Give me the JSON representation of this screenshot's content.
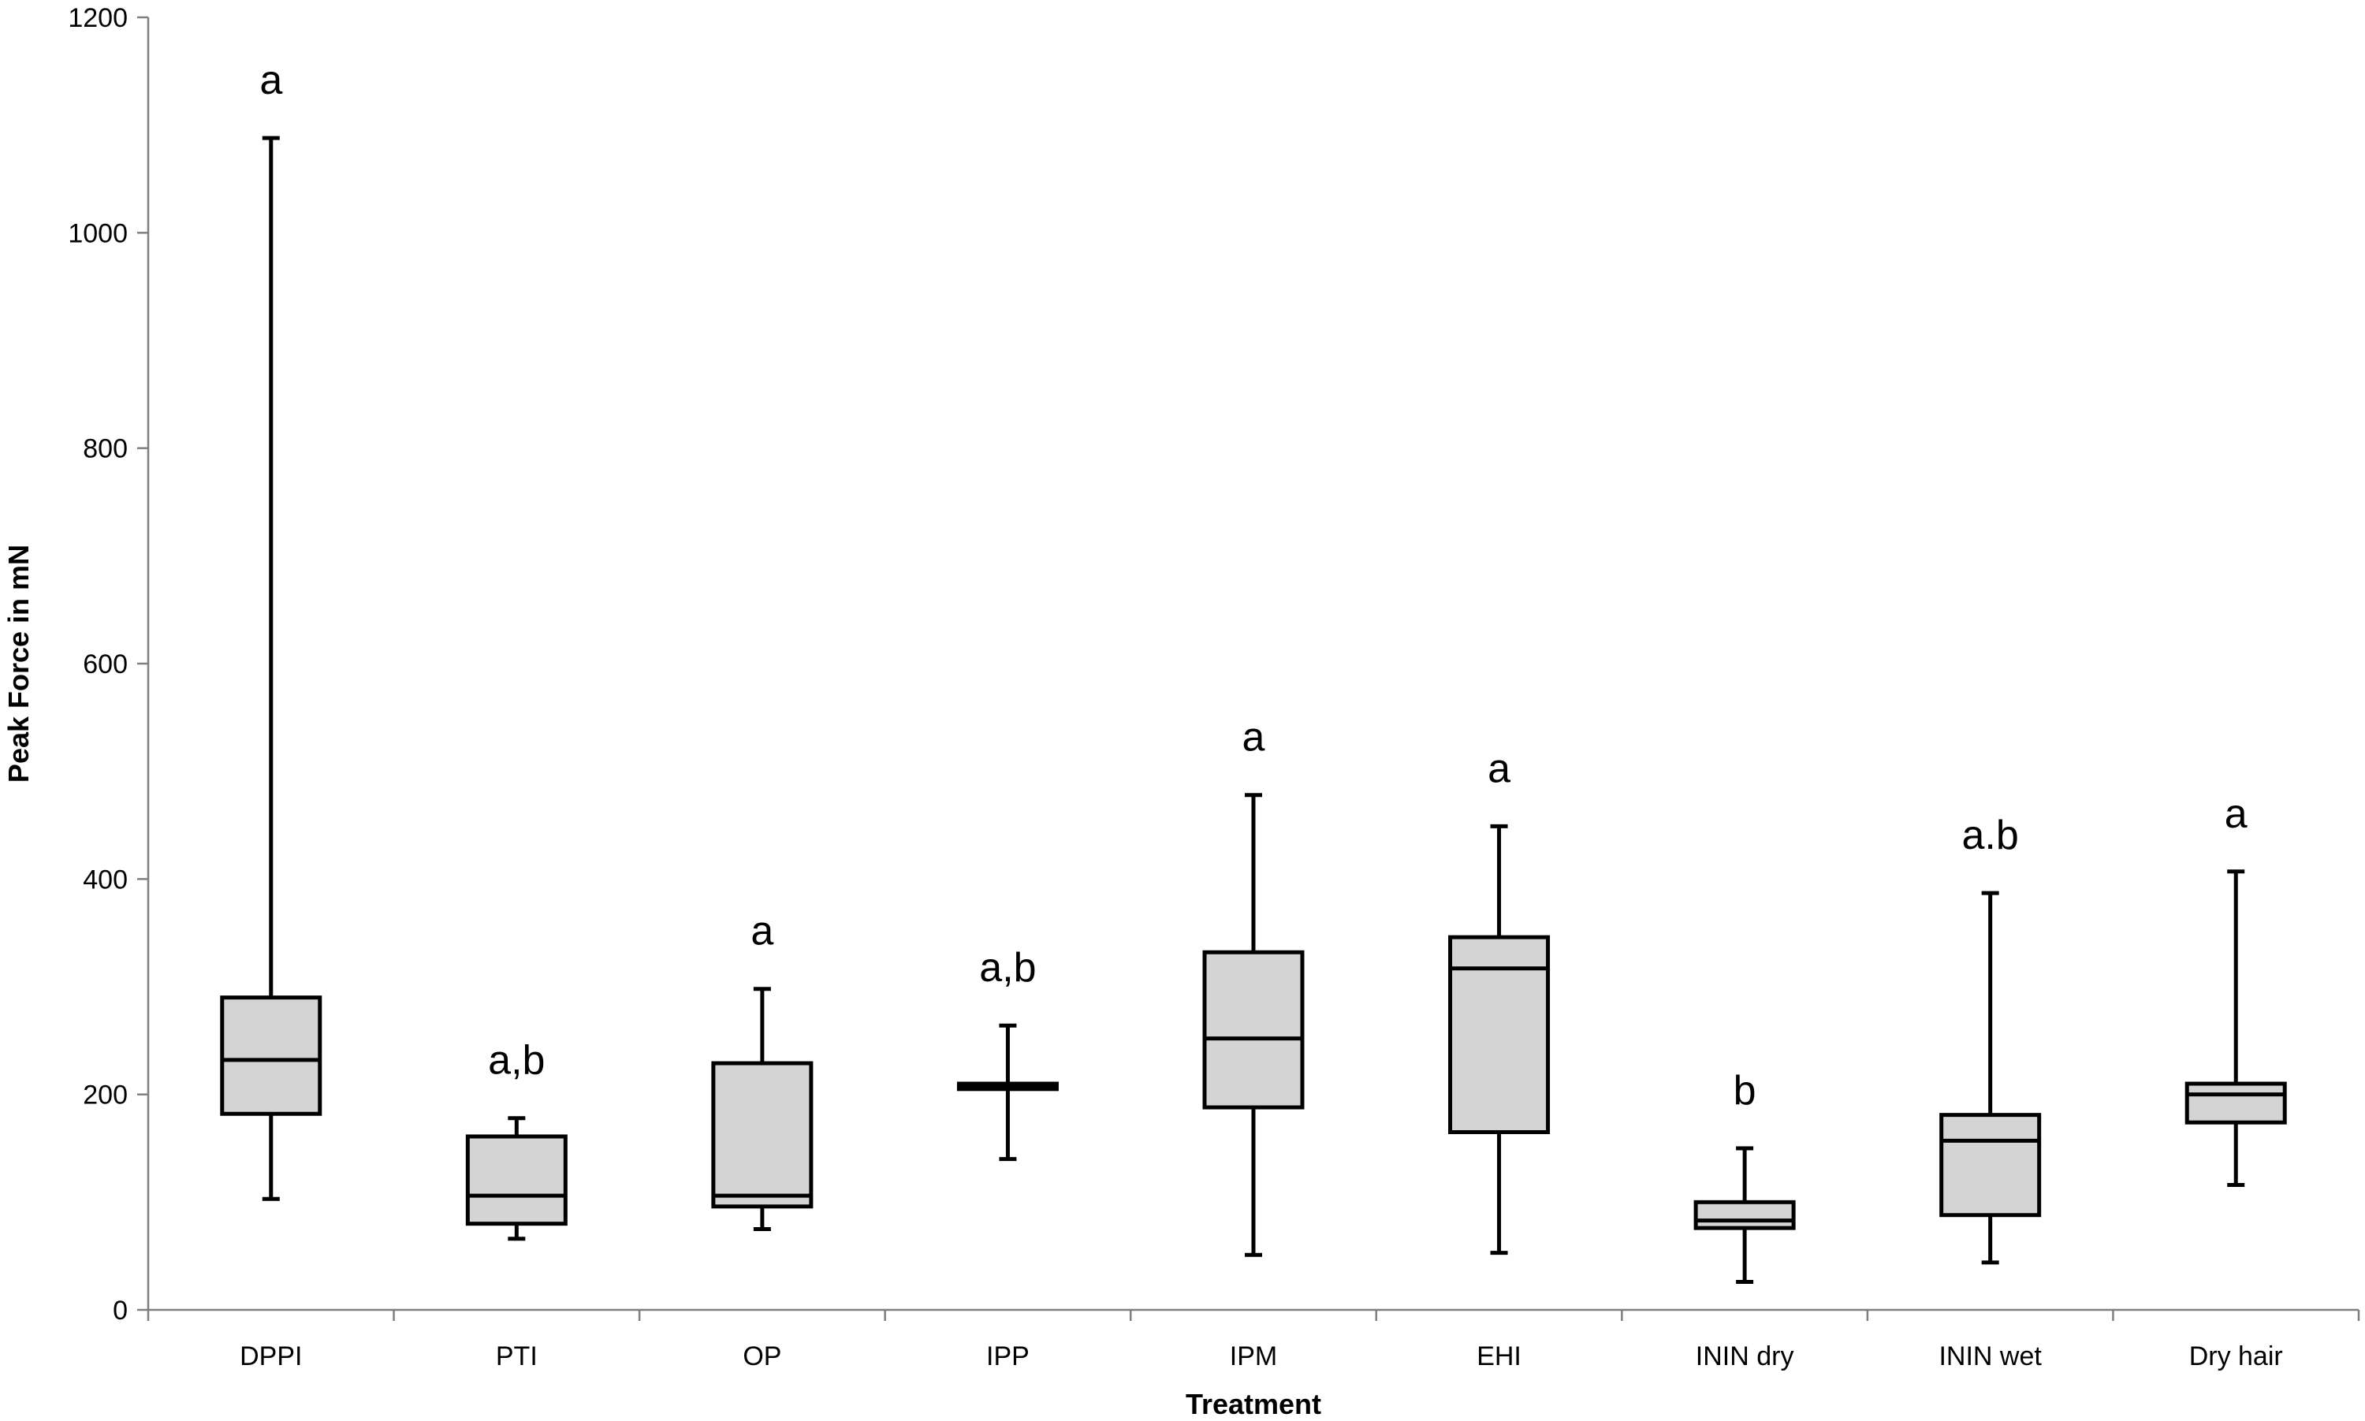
{
  "chart_data": {
    "type": "box",
    "xlabel": "Treatment",
    "ylabel": "Peak Force in mN",
    "ylim": [
      0,
      1200
    ],
    "yticks": [
      0,
      200,
      400,
      600,
      800,
      1000,
      1200
    ],
    "grid": false,
    "categories": [
      "DPPI",
      "PTI",
      "OP",
      "IPP",
      "IPM",
      "EHI",
      "ININ dry",
      "ININ wet",
      "Dry hair"
    ],
    "boxes": [
      {
        "min": 103,
        "q1": 182,
        "median": 232,
        "q3": 290,
        "max": 1088,
        "letter": "a"
      },
      {
        "min": 66,
        "q1": 80,
        "median": 106,
        "q3": 161,
        "max": 178,
        "letter": "a,b"
      },
      {
        "min": 75,
        "q1": 96,
        "median": 106,
        "q3": 229,
        "max": 298,
        "letter": "a"
      },
      {
        "min": 140,
        "q1": 205,
        "median": 208,
        "q3": 210,
        "max": 264,
        "letter": "a,b"
      },
      {
        "min": 51,
        "q1": 188,
        "median": 252,
        "q3": 332,
        "max": 478,
        "letter": "a"
      },
      {
        "min": 53,
        "q1": 165,
        "median": 317,
        "q3": 346,
        "max": 449,
        "letter": "a"
      },
      {
        "min": 26,
        "q1": 76,
        "median": 83,
        "q3": 100,
        "max": 150,
        "letter": "b"
      },
      {
        "min": 44,
        "q1": 88,
        "median": 157,
        "q3": 181,
        "max": 387,
        "letter": "a.b"
      },
      {
        "min": 116,
        "q1": 174,
        "median": 200,
        "q3": 210,
        "max": 407,
        "letter": "a"
      }
    ],
    "colors": {
      "box_fill": "#d4d4d4",
      "stroke": "#000000",
      "axis": "#7f7f7f"
    }
  }
}
